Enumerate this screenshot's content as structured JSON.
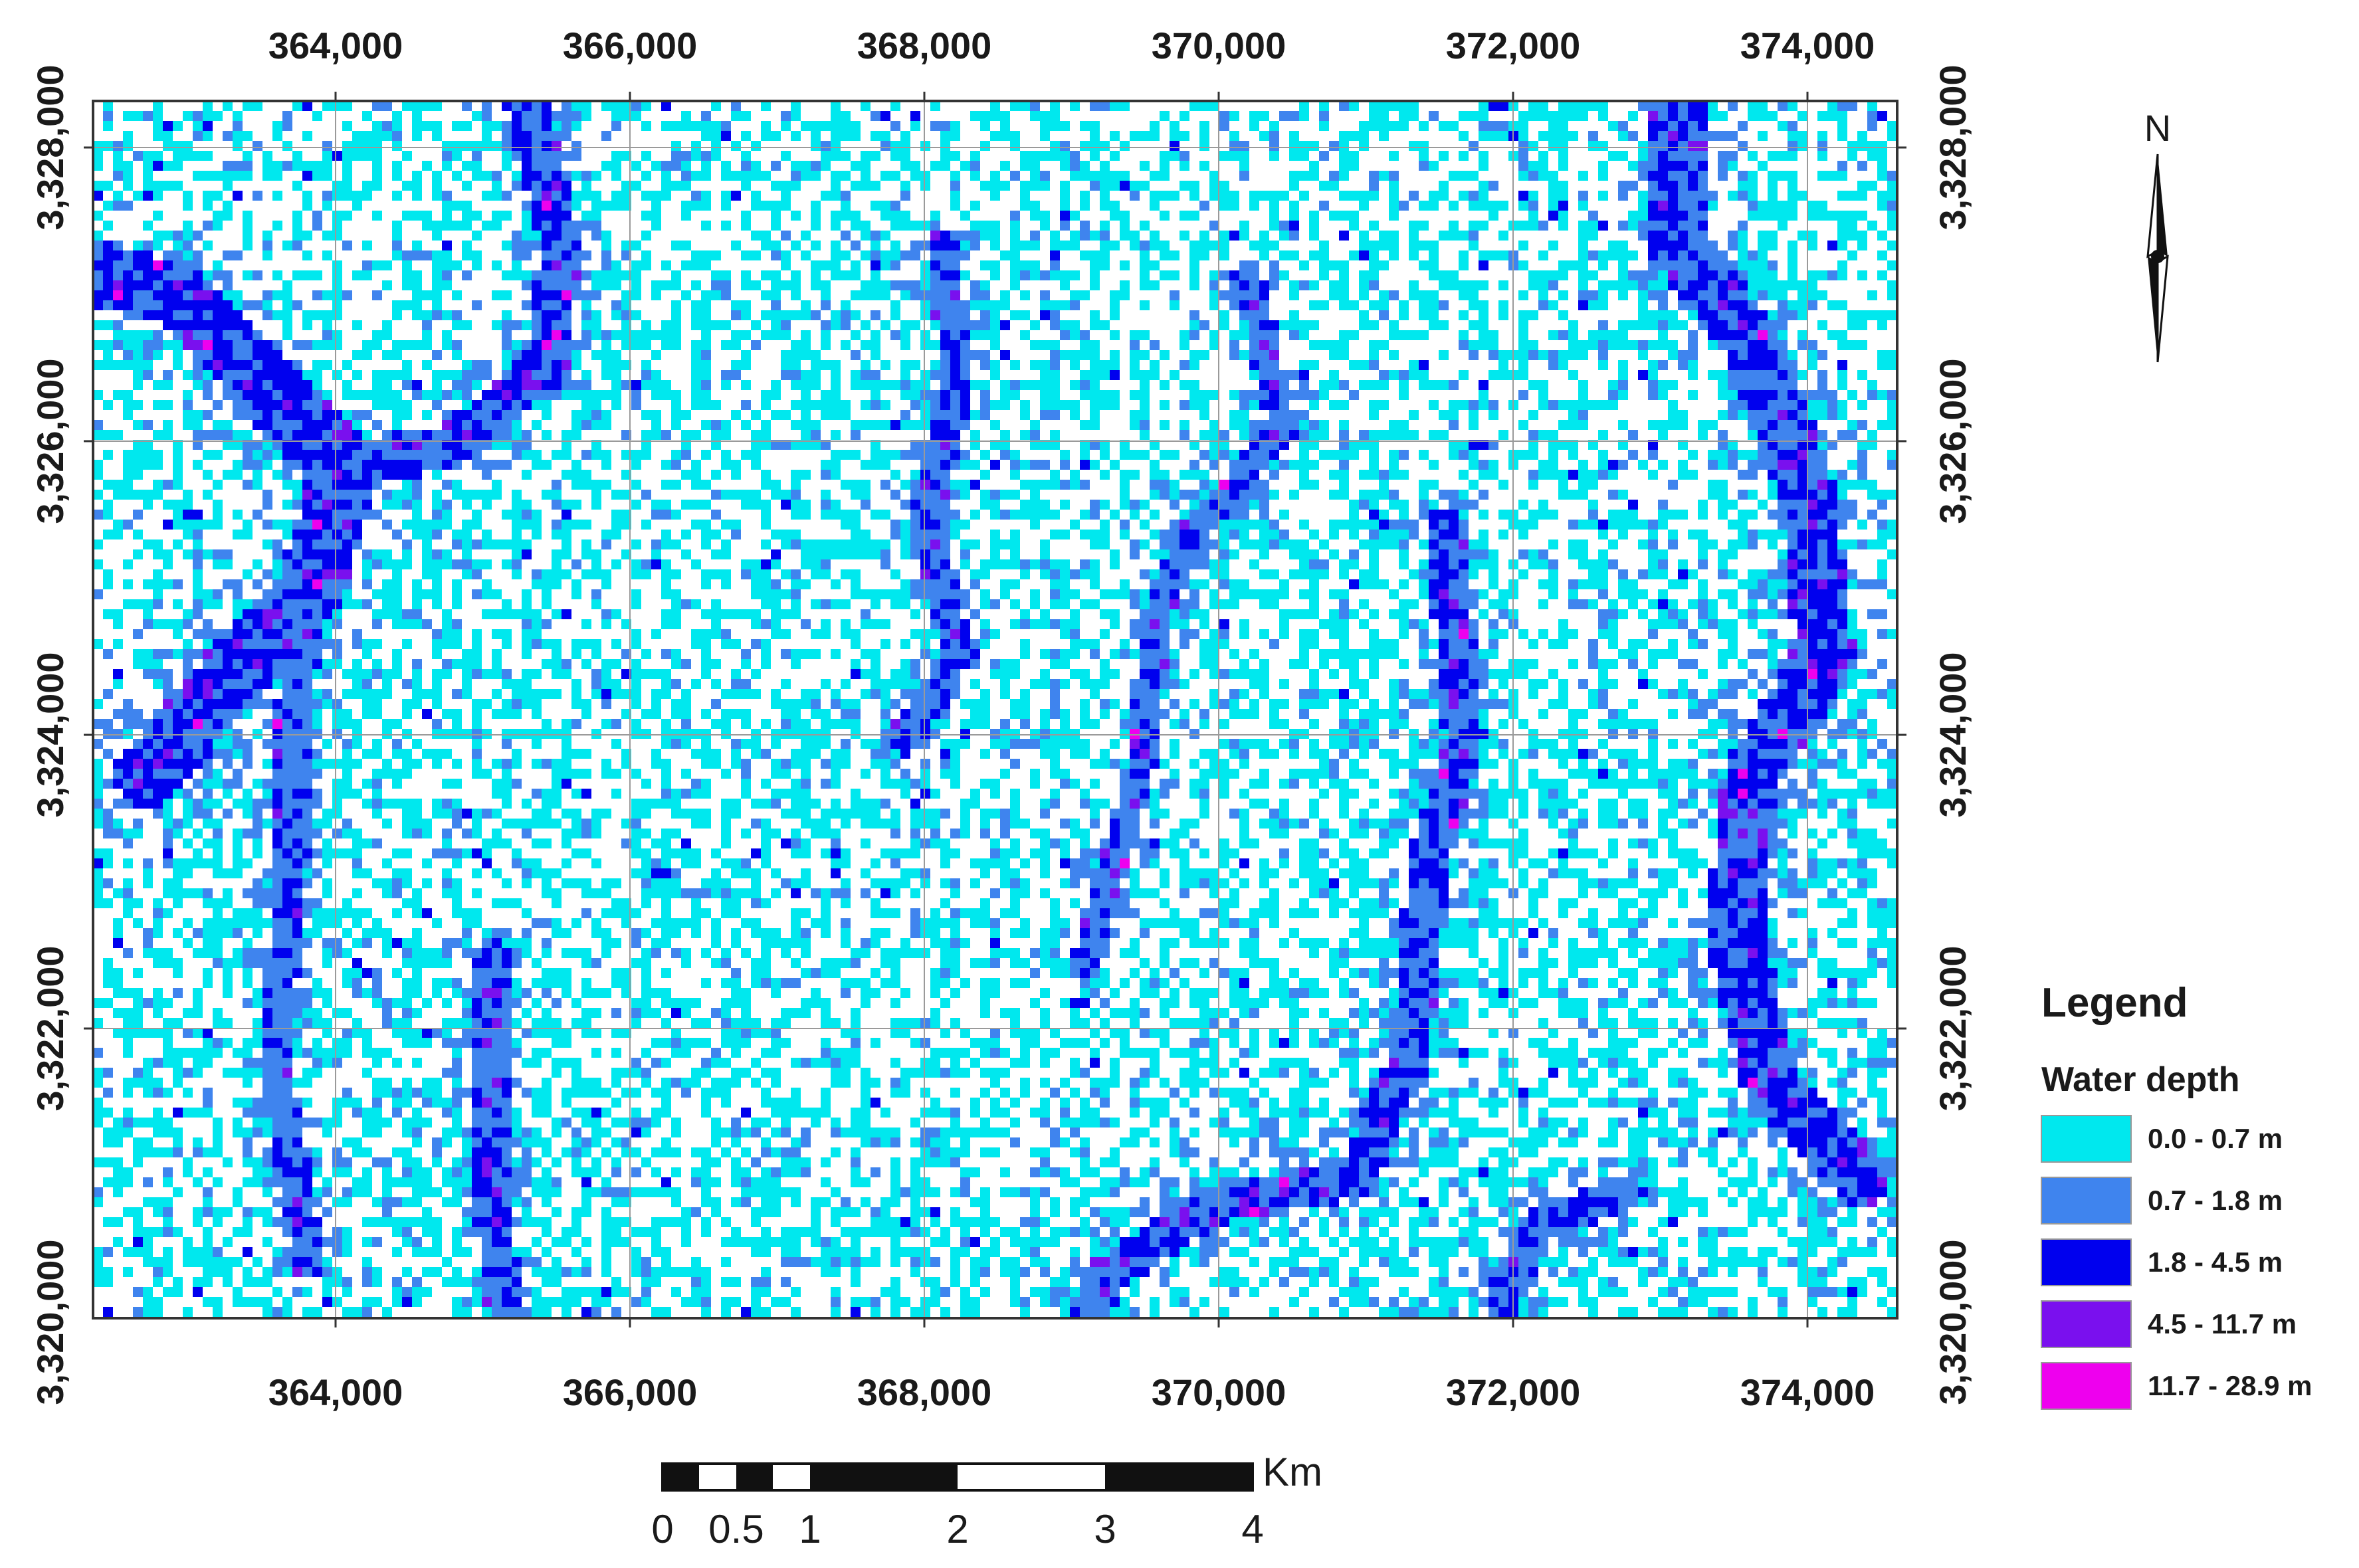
{
  "map": {
    "x_ticks": [
      "364,000",
      "366,000",
      "368,000",
      "370,000",
      "372,000",
      "374,000"
    ],
    "y_ticks": [
      "3,328,000",
      "3,326,000",
      "3,324,000",
      "3,322,000",
      "3,320,000"
    ],
    "colors": {
      "background": "#ffffff",
      "gridline": "#9a9a9a"
    }
  },
  "north_arrow": {
    "label": "N"
  },
  "legend": {
    "title": "Legend",
    "subtitle": "Water depth",
    "classes": [
      {
        "label": "0.0 - 0.7 m",
        "color": "#00e8ee"
      },
      {
        "label": "0.7 - 1.8 m",
        "color": "#3f84ee"
      },
      {
        "label": "1.8 - 4.5 m",
        "color": "#0000ee"
      },
      {
        "label": "4.5 - 11.7 m",
        "color": "#7a10ee"
      },
      {
        "label": "11.7 - 28.9 m",
        "color": "#ee00ee"
      }
    ]
  },
  "scale_bar": {
    "unit": "Km",
    "labels": [
      "0",
      "0.5",
      "1",
      "2",
      "3",
      "4"
    ]
  }
}
